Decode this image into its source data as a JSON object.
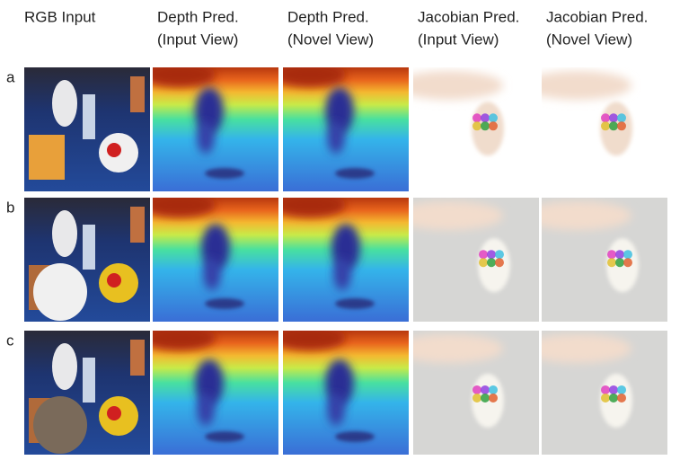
{
  "header": {
    "columns": [
      {
        "lines": [
          "RGB Input"
        ]
      },
      {
        "lines": [
          "Depth Pred.",
          "(Input View)"
        ]
      },
      {
        "lines": [
          "Depth Pred.",
          "(Novel View)"
        ]
      },
      {
        "lines": [
          "Jacobian Pred.",
          "(Input View)"
        ]
      },
      {
        "lines": [
          "Jacobian Pred.",
          "(Novel View)"
        ]
      }
    ]
  },
  "rows": [
    {
      "label": "a"
    },
    {
      "label": "b"
    },
    {
      "label": "c"
    }
  ]
}
